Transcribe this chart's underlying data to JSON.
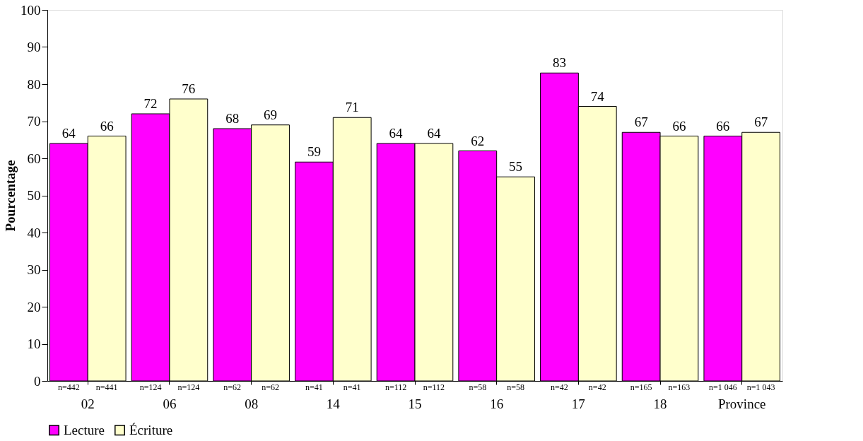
{
  "chart_data": {
    "type": "bar",
    "ylabel": "Pourcentage",
    "categories": [
      "02",
      "06",
      "08",
      "14",
      "15",
      "16",
      "17",
      "18",
      "Province"
    ],
    "series": [
      {
        "name": "Lecture",
        "color": "#ff00ff",
        "values": [
          64,
          72,
          68,
          59,
          64,
          62,
          83,
          67,
          66
        ]
      },
      {
        "name": "Écriture",
        "color": "#ffffcc",
        "values": [
          66,
          76,
          69,
          71,
          64,
          55,
          74,
          66,
          67
        ]
      }
    ],
    "annotations": [
      "n=442",
      "n=441",
      "n=124",
      "n=124",
      "n=62",
      "n=62",
      "n=41",
      "n=41",
      "n=112",
      "n=112",
      "n=58",
      "n=58",
      "n=42",
      "n=42",
      "n=165",
      "n=163",
      "n=1 046",
      "n=1 043"
    ],
    "ylim": [
      0,
      100
    ],
    "yticks": [
      0,
      10,
      20,
      30,
      40,
      50,
      60,
      70,
      80,
      90,
      100
    ],
    "data_labels": true,
    "grid": false,
    "legend": "bottom"
  }
}
